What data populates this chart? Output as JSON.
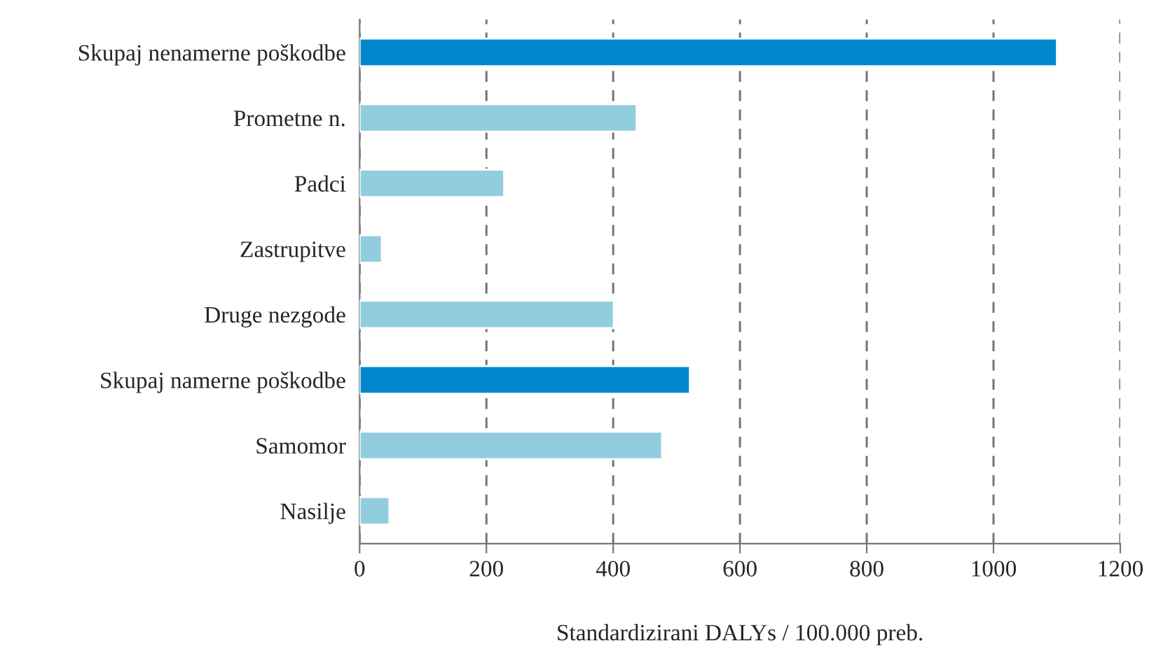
{
  "chart_data": {
    "type": "bar",
    "orientation": "horizontal",
    "categories": [
      "Skupaj nenamerne poškodbe",
      "Prometne n.",
      "Padci",
      "Zastrupitve",
      "Druge nezgode",
      "Skupaj namerne poškodbe",
      "Samomor",
      "Nasilje"
    ],
    "values": [
      1100,
      437,
      228,
      35,
      401,
      521,
      477,
      47
    ],
    "colors": [
      "#0088cc",
      "#92cddf",
      "#92cddf",
      "#92cddf",
      "#92cddf",
      "#0088cc",
      "#92cddf",
      "#92cddf"
    ],
    "xlabel": "Standardizirani DALYs / 100.000 preb.",
    "xlim": [
      0,
      1200
    ],
    "xticks": [
      0,
      200,
      400,
      600,
      800,
      1000,
      1200
    ],
    "grid": "x",
    "line_style": "dashed"
  }
}
